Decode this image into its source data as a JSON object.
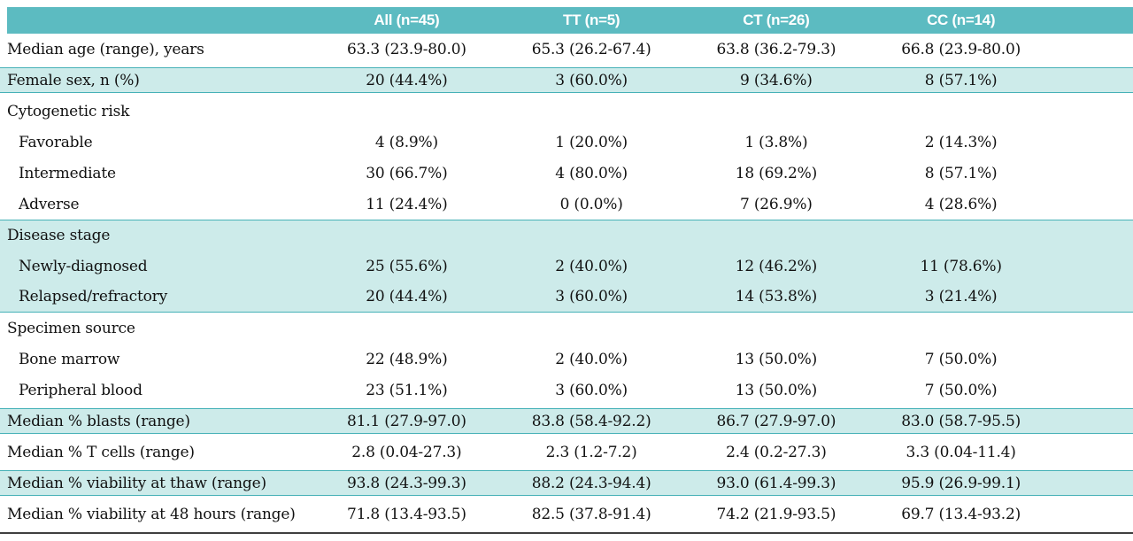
{
  "table": {
    "columns": [
      "All (n=45)",
      "TT (n=5)",
      "CT (n=26)",
      "CC (n=14)"
    ],
    "rows": [
      {
        "label": "Median age (range), years",
        "values": [
          "63.3 (23.9-80.0)",
          "65.3 (26.2-67.4)",
          "63.8 (36.2-79.3)",
          "66.8 (23.9-80.0)"
        ]
      },
      {
        "label": "Female sex, n (%)",
        "values": [
          "20 (44.4%)",
          "3 (60.0%)",
          "9 (34.6%)",
          "8 (57.1%)"
        ]
      },
      {
        "label": "Cytogenetic risk",
        "values": [
          "",
          "",
          "",
          ""
        ]
      },
      {
        "label": "Favorable",
        "values": [
          "4 (8.9%)",
          "1 (20.0%)",
          "1 (3.8%)",
          "2 (14.3%)"
        ]
      },
      {
        "label": "Intermediate",
        "values": [
          "30 (66.7%)",
          "4 (80.0%)",
          "18 (69.2%)",
          "8 (57.1%)"
        ]
      },
      {
        "label": "Adverse",
        "values": [
          "11 (24.4%)",
          "0 (0.0%)",
          "7 (26.9%)",
          "4 (28.6%)"
        ]
      },
      {
        "label": "Disease stage",
        "values": [
          "",
          "",
          "",
          ""
        ]
      },
      {
        "label": "Newly-diagnosed",
        "values": [
          "25 (55.6%)",
          "2 (40.0%)",
          "12 (46.2%)",
          "11 (78.6%)"
        ]
      },
      {
        "label": "Relapsed/refractory",
        "values": [
          "20 (44.4%)",
          "3 (60.0%)",
          "14 (53.8%)",
          "3 (21.4%)"
        ]
      },
      {
        "label": "Specimen source",
        "values": [
          "",
          "",
          "",
          ""
        ]
      },
      {
        "label": "Bone marrow",
        "values": [
          "22 (48.9%)",
          "2 (40.0%)",
          "13 (50.0%)",
          "7 (50.0%)"
        ]
      },
      {
        "label": "Peripheral blood",
        "values": [
          "23 (51.1%)",
          "3 (60.0%)",
          "13 (50.0%)",
          "7 (50.0%)"
        ]
      },
      {
        "label": "Median % blasts (range)",
        "values": [
          "81.1 (27.9-97.0)",
          "83.8 (58.4-92.2)",
          "86.7 (27.9-97.0)",
          "83.0 (58.7-95.5)"
        ]
      },
      {
        "label": "Median % T cells (range)",
        "values": [
          "2.8 (0.04-27.3)",
          "2.3 (1.2-7.2)",
          "2.4 (0.2-27.3)",
          "3.3 (0.04-11.4)"
        ]
      },
      {
        "label": "Median % viability at thaw (range)",
        "values": [
          "93.8 (24.3-99.3)",
          "88.2 (24.3-94.4)",
          "93.0 (61.4-99.3)",
          "95.9 (26.9-99.1)"
        ]
      },
      {
        "label": "Median % viability at 48 hours (range)",
        "values": [
          "71.8 (13.4-93.5)",
          "82.5 (37.8-91.4)",
          "74.2 (21.9-93.5)",
          "69.7 (13.4-93.2)"
        ]
      }
    ],
    "colors": {
      "header_teal": "#5cbbc1",
      "band_light_teal": "#cdebea",
      "rule_teal": "#46b1b7",
      "bottom_rule": "#3f3f3f"
    }
  }
}
